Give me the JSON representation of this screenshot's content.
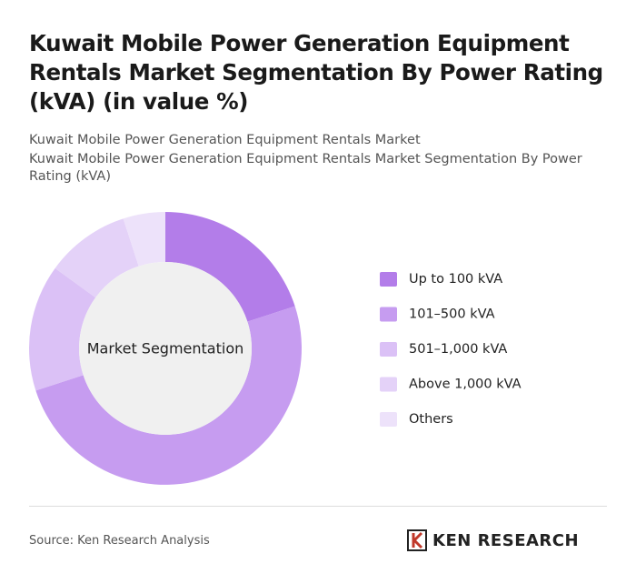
{
  "chart_data": {
    "type": "donut",
    "title": "Kuwait Mobile Power Generation Equipment Rentals Market Segmentation By Power Rating (kVA) (in value %)",
    "subtitle": [
      "Kuwait Mobile Power Generation Equipment Rentals Market",
      "Kuwait Mobile Power Generation Equipment Rentals Market Segmentation By Power Rating (kVA)"
    ],
    "center_label": "Market Segmentation",
    "categories": [
      "Up to 100 kVA",
      "101–500 kVA",
      "501–1,000 kVA",
      "Above 1,000 kVA",
      "Others"
    ],
    "values": [
      20,
      50,
      15,
      10,
      5
    ],
    "colors": [
      "#b37de9",
      "#c69cf0",
      "#dbc1f6",
      "#e4d2f8",
      "#ede2fa"
    ],
    "source": "Source: Ken Research Analysis",
    "brand": "KEN RESEARCH"
  }
}
